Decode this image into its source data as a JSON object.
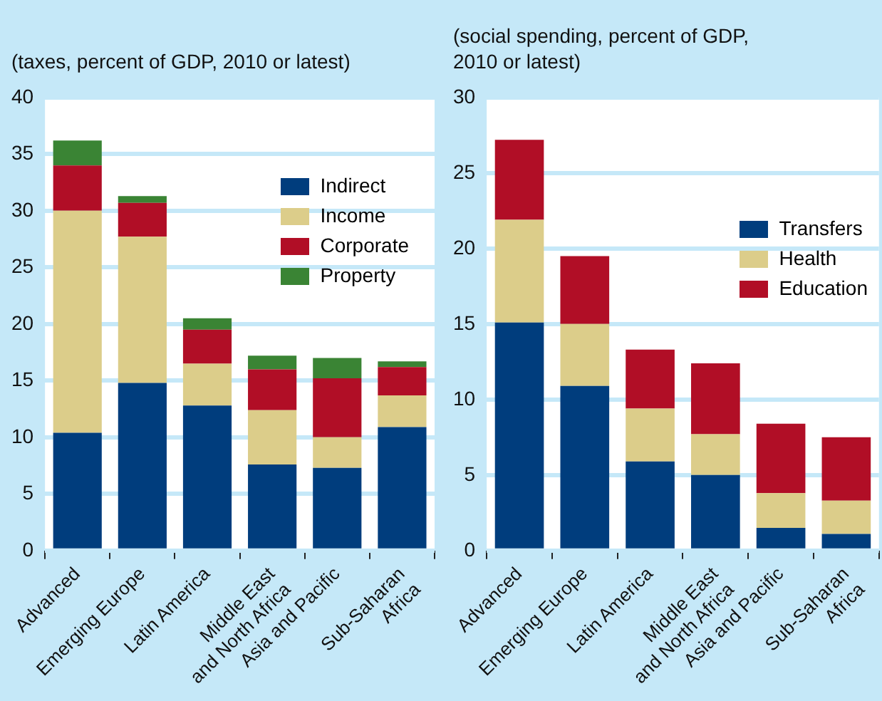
{
  "chart_data": [
    {
      "type": "bar",
      "stacked": true,
      "subtitle": "(taxes, percent of GDP, 2010 or latest)",
      "categories": [
        "Advanced",
        "Emerging Europe",
        "Latin America",
        "Middle East\nand North Africa",
        "Asia and Pacific",
        "Sub-Saharan\nAfrica"
      ],
      "series": [
        {
          "name": "Indirect",
          "color": "#003d7d",
          "values": [
            10.4,
            14.8,
            12.8,
            7.6,
            7.3,
            10.9
          ]
        },
        {
          "name": "Income",
          "color": "#dccd8a",
          "values": [
            19.6,
            12.9,
            3.7,
            4.8,
            2.7,
            2.8
          ]
        },
        {
          "name": "Corporate",
          "color": "#b10e26",
          "values": [
            4.0,
            3.0,
            3.0,
            3.6,
            5.2,
            2.5
          ]
        },
        {
          "name": "Property",
          "color": "#3a8434",
          "values": [
            2.2,
            0.6,
            1.0,
            1.2,
            1.8,
            0.5
          ]
        }
      ],
      "ylim": [
        0,
        40
      ],
      "yticks": [
        0,
        5,
        10,
        15,
        20,
        25,
        30,
        35,
        40
      ],
      "grid": "y",
      "legend": "top right"
    },
    {
      "type": "bar",
      "stacked": true,
      "subtitle": "(social spending, percent of GDP,\n2010 or latest)",
      "categories": [
        "Advanced",
        "Emerging Europe",
        "Latin America",
        "Middle East\nand North Africa",
        "Asia and Pacific",
        "Sub-Saharan\nAfrica"
      ],
      "series": [
        {
          "name": "Transfers",
          "color": "#003d7d",
          "values": [
            15.1,
            10.9,
            5.9,
            5.0,
            1.5,
            1.1
          ]
        },
        {
          "name": "Health",
          "color": "#dccd8a",
          "values": [
            6.8,
            4.1,
            3.5,
            2.7,
            2.3,
            2.2
          ]
        },
        {
          "name": "Education",
          "color": "#b10e26",
          "values": [
            5.3,
            4.5,
            3.9,
            4.7,
            4.6,
            4.2
          ]
        }
      ],
      "ylim": [
        0,
        30
      ],
      "yticks": [
        0,
        5,
        10,
        15,
        20,
        25,
        30
      ],
      "grid": "y",
      "legend": "right"
    }
  ]
}
